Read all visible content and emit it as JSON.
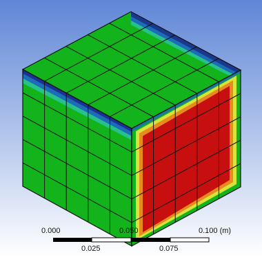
{
  "viewport": {
    "background_top": "#5f86d6",
    "background_bottom": "#ffffff"
  },
  "model": {
    "shape": "cube-mesh",
    "grid_divisions": 5,
    "colors": {
      "field_green": "#12b31b",
      "hot_red": "#c80f0f",
      "transition_yellow": "#d7e23a",
      "transition_orange": "#e88b1f",
      "edge_cyan": "#33c9c9",
      "edge_blue": "#1f5fd6",
      "edge_navy": "#1c2a9c",
      "mesh_line": "#101010"
    }
  },
  "scale_bar": {
    "labels_top": [
      "0.000",
      "0.050",
      "0.100 (m)"
    ],
    "labels_bottom": [
      "0.025",
      "0.075"
    ],
    "bar_color": "#000000",
    "bar_alt_color": "#ffffff"
  }
}
